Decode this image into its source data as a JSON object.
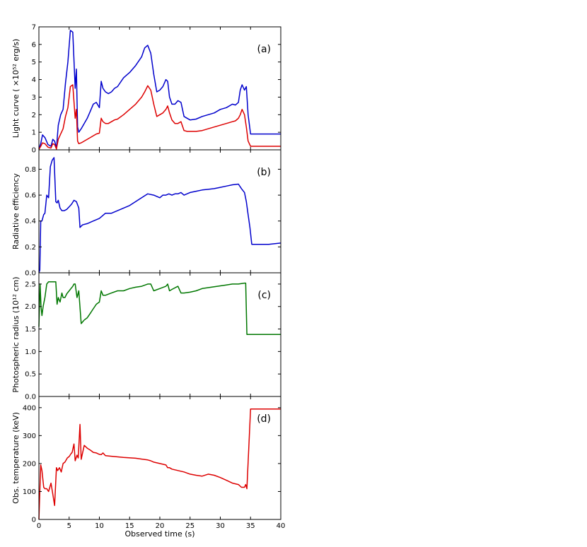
{
  "chart_data": [
    {
      "type": "line",
      "panel_label": "(a)",
      "ylabel": "Light curve ( ×10⁵² erg/s)",
      "xlim": [
        0,
        40
      ],
      "ylim": [
        0,
        7
      ],
      "yticks": [
        "0",
        "1",
        "2",
        "3",
        "4",
        "5",
        "6",
        "7"
      ],
      "grid": false,
      "series": [
        {
          "color": "#0000cc",
          "x": [
            0,
            0.3,
            0.6,
            1.0,
            1.5,
            2.0,
            2.3,
            2.6,
            2.9,
            3.2,
            3.6,
            4.0,
            4.4,
            4.8,
            5.2,
            5.6,
            6.0,
            6.2,
            6.4,
            6.6,
            7.0,
            7.5,
            8.0,
            8.5,
            9.0,
            9.5,
            10.0,
            10.3,
            10.6,
            11.0,
            11.5,
            12.0,
            12.5,
            13.0,
            14.0,
            15.0,
            16.0,
            17.0,
            17.5,
            18.0,
            18.5,
            19.0,
            19.5,
            20.0,
            20.5,
            21.0,
            21.3,
            21.6,
            22.0,
            22.5,
            23.0,
            23.5,
            24.0,
            24.5,
            25.0,
            26.0,
            27.0,
            28.0,
            29.0,
            30.0,
            31.0,
            32.0,
            32.5,
            33.0,
            33.3,
            33.6,
            34.0,
            34.3,
            34.6,
            35.0,
            36.0,
            38.0,
            40.0
          ],
          "y": [
            0.05,
            0.35,
            0.85,
            0.7,
            0.3,
            0.2,
            0.6,
            0.5,
            0.1,
            1.4,
            2.0,
            2.3,
            3.8,
            5.0,
            6.8,
            6.7,
            3.5,
            4.6,
            1.3,
            1.0,
            1.2,
            1.5,
            1.8,
            2.2,
            2.6,
            2.7,
            2.4,
            3.9,
            3.5,
            3.3,
            3.2,
            3.3,
            3.5,
            3.6,
            4.1,
            4.4,
            4.8,
            5.3,
            5.8,
            5.95,
            5.5,
            4.3,
            3.3,
            3.4,
            3.6,
            4.0,
            3.9,
            3.0,
            2.6,
            2.6,
            2.8,
            2.7,
            1.9,
            1.8,
            1.7,
            1.75,
            1.9,
            2.0,
            2.1,
            2.3,
            2.4,
            2.6,
            2.55,
            2.7,
            3.4,
            3.7,
            3.4,
            3.6,
            2.0,
            0.9,
            0.9,
            0.9,
            0.9
          ]
        },
        {
          "color": "#dd0000",
          "x": [
            0,
            0.3,
            0.6,
            1.0,
            1.5,
            2.0,
            2.3,
            2.6,
            2.9,
            3.2,
            3.6,
            4.0,
            4.4,
            4.8,
            5.2,
            5.6,
            6.0,
            6.2,
            6.4,
            6.6,
            7.0,
            7.5,
            8.0,
            8.5,
            9.0,
            9.5,
            10.0,
            10.3,
            10.6,
            11.0,
            11.5,
            12.0,
            12.5,
            13.0,
            14.0,
            15.0,
            16.0,
            17.0,
            17.5,
            18.0,
            18.5,
            19.0,
            19.5,
            20.0,
            20.5,
            21.0,
            21.3,
            21.6,
            22.0,
            22.5,
            23.0,
            23.5,
            24.0,
            24.5,
            25.0,
            26.0,
            27.0,
            28.0,
            29.0,
            30.0,
            31.0,
            32.0,
            32.5,
            33.0,
            33.3,
            33.6,
            34.0,
            34.3,
            34.6,
            35.0,
            36.0,
            38.0,
            40.0
          ],
          "y": [
            0.02,
            0.2,
            0.4,
            0.35,
            0.15,
            0.1,
            0.35,
            0.3,
            0.05,
            0.6,
            0.9,
            1.2,
            1.9,
            2.4,
            3.6,
            3.7,
            1.8,
            2.3,
            0.5,
            0.35,
            0.4,
            0.5,
            0.6,
            0.7,
            0.8,
            0.9,
            0.95,
            1.8,
            1.6,
            1.5,
            1.5,
            1.6,
            1.7,
            1.75,
            2.0,
            2.3,
            2.6,
            3.0,
            3.3,
            3.65,
            3.4,
            2.6,
            1.9,
            2.0,
            2.1,
            2.3,
            2.5,
            2.1,
            1.7,
            1.5,
            1.5,
            1.6,
            1.1,
            1.05,
            1.05,
            1.05,
            1.1,
            1.2,
            1.3,
            1.4,
            1.5,
            1.6,
            1.65,
            1.8,
            2.0,
            2.3,
            2.0,
            1.3,
            0.5,
            0.2,
            0.2,
            0.2,
            0.2
          ]
        }
      ]
    },
    {
      "type": "line",
      "panel_label": "(b)",
      "ylabel": "Radiative efficiency",
      "xlim": [
        0,
        40
      ],
      "ylim": [
        0,
        0.95
      ],
      "yticks": [
        "0.0",
        "0.2",
        "0.4",
        "0.6",
        "0.8"
      ],
      "ytick_values": [
        0,
        0.2,
        0.4,
        0.6,
        0.8
      ],
      "grid": false,
      "series": [
        {
          "color": "#0000cc",
          "x": [
            0,
            0.15,
            0.3,
            0.5,
            0.8,
            1.0,
            1.3,
            1.6,
            1.9,
            2.2,
            2.5,
            2.8,
            3.0,
            3.2,
            3.5,
            3.8,
            4.2,
            4.6,
            5.0,
            5.4,
            5.8,
            6.2,
            6.6,
            6.8,
            7.2,
            8.0,
            9.0,
            10.0,
            10.5,
            11.0,
            12.0,
            13.0,
            14.0,
            15.0,
            16.0,
            17.0,
            18.0,
            19.0,
            20.0,
            20.5,
            21.0,
            21.5,
            22.0,
            22.5,
            23.0,
            23.5,
            24.0,
            25.0,
            26.0,
            27.0,
            28.0,
            29.0,
            30.0,
            31.0,
            32.0,
            33.0,
            33.5,
            34.0,
            34.3,
            34.6,
            34.9,
            35.2,
            36.0,
            38.0,
            40.0
          ],
          "y": [
            0.0,
            0.02,
            0.4,
            0.4,
            0.45,
            0.46,
            0.6,
            0.58,
            0.82,
            0.87,
            0.89,
            0.55,
            0.54,
            0.56,
            0.5,
            0.48,
            0.48,
            0.49,
            0.51,
            0.53,
            0.56,
            0.55,
            0.5,
            0.35,
            0.37,
            0.38,
            0.4,
            0.42,
            0.44,
            0.46,
            0.46,
            0.48,
            0.5,
            0.52,
            0.55,
            0.58,
            0.61,
            0.6,
            0.58,
            0.6,
            0.6,
            0.61,
            0.6,
            0.61,
            0.61,
            0.62,
            0.6,
            0.62,
            0.63,
            0.64,
            0.645,
            0.65,
            0.66,
            0.67,
            0.68,
            0.685,
            0.65,
            0.62,
            0.55,
            0.45,
            0.35,
            0.22,
            0.22,
            0.22,
            0.23
          ]
        }
      ]
    },
    {
      "type": "line",
      "panel_label": "(c)",
      "ylabel": "Photospheric radius (10¹² cm)",
      "xlim": [
        0,
        40
      ],
      "ylim": [
        0,
        2.75
      ],
      "yticks": [
        "0.0",
        "0.5",
        "1.0",
        "1.5",
        "2.0",
        "2.5"
      ],
      "ytick_values": [
        0,
        0.5,
        1.0,
        1.5,
        2.0,
        2.5
      ],
      "grid": false,
      "series": [
        {
          "color": "#007700",
          "x": [
            0,
            0.2,
            0.35,
            0.5,
            0.7,
            1.0,
            1.3,
            1.6,
            2.0,
            2.4,
            2.8,
            3.0,
            3.2,
            3.5,
            3.8,
            4.0,
            4.3,
            4.6,
            5.0,
            5.3,
            5.6,
            5.8,
            6.0,
            6.3,
            6.6,
            7.0,
            7.5,
            8.0,
            8.5,
            9.0,
            9.5,
            10.0,
            10.3,
            10.6,
            11.0,
            12.0,
            13.0,
            14.0,
            15.0,
            16.0,
            17.0,
            18.0,
            18.5,
            19.0,
            20.0,
            21.0,
            21.3,
            21.6,
            22.0,
            23.0,
            23.5,
            24.0,
            25.0,
            26.0,
            27.0,
            28.0,
            29.0,
            30.0,
            31.0,
            32.0,
            33.0,
            34.0,
            34.2,
            34.4,
            35.0,
            36.0,
            38.0,
            40.0
          ],
          "y": [
            1.55,
            2.5,
            2.0,
            1.8,
            2.0,
            2.2,
            2.5,
            2.55,
            2.55,
            2.55,
            2.55,
            2.05,
            2.2,
            2.1,
            2.3,
            2.2,
            2.2,
            2.28,
            2.35,
            2.4,
            2.45,
            2.5,
            2.5,
            2.2,
            2.35,
            1.62,
            1.7,
            1.75,
            1.85,
            1.95,
            2.05,
            2.1,
            2.35,
            2.25,
            2.25,
            2.3,
            2.35,
            2.35,
            2.4,
            2.43,
            2.45,
            2.5,
            2.5,
            2.35,
            2.4,
            2.45,
            2.5,
            2.35,
            2.38,
            2.45,
            2.3,
            2.3,
            2.32,
            2.35,
            2.4,
            2.42,
            2.44,
            2.46,
            2.48,
            2.5,
            2.5,
            2.52,
            2.52,
            1.38,
            1.38,
            1.38,
            1.38,
            1.38
          ]
        }
      ]
    },
    {
      "type": "line",
      "panel_label": "(d)",
      "ylabel": "Obs. temperature (keV)",
      "xlabel": "Observed time (s)",
      "xlim": [
        0,
        40
      ],
      "ylim": [
        0,
        440
      ],
      "yticks": [
        "0",
        "100",
        "200",
        "300",
        "400"
      ],
      "ytick_values": [
        0,
        100,
        200,
        300,
        400
      ],
      "xticks": [
        "0",
        "5",
        "10",
        "15",
        "20",
        "25",
        "30",
        "35",
        "40"
      ],
      "xtick_values": [
        0,
        5,
        10,
        15,
        20,
        25,
        30,
        35,
        40
      ],
      "grid": false,
      "series": [
        {
          "color": "#dd0000",
          "x": [
            0,
            0.3,
            0.5,
            0.8,
            1.0,
            1.3,
            1.6,
            2.0,
            2.3,
            2.6,
            2.9,
            3.1,
            3.4,
            3.7,
            4.0,
            4.3,
            4.7,
            5.0,
            5.3,
            5.5,
            5.8,
            6.0,
            6.3,
            6.5,
            6.8,
            7.0,
            7.5,
            8.0,
            8.5,
            9.0,
            9.5,
            10.0,
            10.3,
            10.6,
            11.0,
            12.0,
            14.0,
            16.0,
            17.0,
            18.0,
            18.5,
            19.0,
            20.0,
            21.0,
            21.3,
            21.6,
            22.0,
            23.0,
            24.0,
            25.0,
            26.0,
            27.0,
            28.0,
            29.0,
            30.0,
            31.0,
            32.0,
            33.0,
            33.5,
            34.0,
            34.2,
            34.4,
            35.0,
            36.0,
            38.0,
            40.0
          ],
          "y": [
            0,
            195,
            175,
            115,
            110,
            110,
            100,
            130,
            90,
            50,
            185,
            175,
            185,
            170,
            200,
            205,
            220,
            225,
            235,
            240,
            270,
            210,
            230,
            220,
            340,
            215,
            265,
            255,
            248,
            240,
            238,
            233,
            232,
            238,
            228,
            226,
            222,
            219,
            216,
            213,
            210,
            205,
            200,
            195,
            185,
            185,
            180,
            175,
            170,
            162,
            158,
            155,
            162,
            158,
            150,
            140,
            130,
            125,
            115,
            115,
            125,
            110,
            395,
            395,
            395,
            395
          ]
        }
      ]
    }
  ]
}
